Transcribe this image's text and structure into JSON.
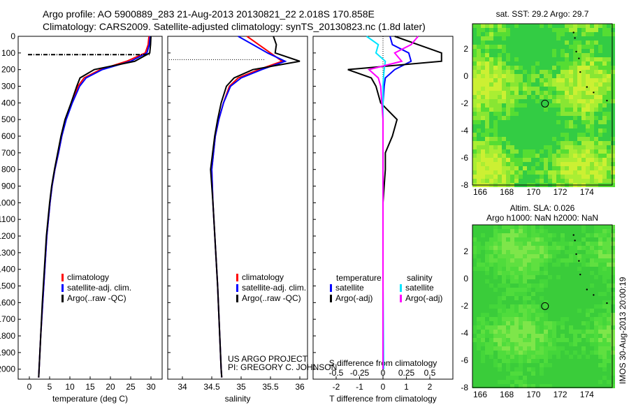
{
  "header": {
    "line1": "Argo profile: AO 5900889_283 21-Aug-2013 20130821_22 2.018S 170.858E",
    "line2": "Climatology: CARS2009. Satellite-adjusted climatology: synTS_20130823.nc (1.8d later)"
  },
  "colors": {
    "climatology": "#ff0000",
    "satellite": "#0000ff",
    "argo": "#000000",
    "s_satellite": "#00e5ff",
    "s_argo": "#ff00ff"
  },
  "chart_data": [
    {
      "type": "line",
      "name": "temperature",
      "xlabel": "temperature (deg C)",
      "xlim": [
        -2.5,
        32
      ],
      "ylim": [
        0,
        2060
      ],
      "xticks": [
        0,
        5,
        10,
        15,
        20,
        25,
        30
      ],
      "yticks": [
        0,
        100,
        200,
        300,
        400,
        500,
        600,
        700,
        800,
        900,
        1000,
        1100,
        1200,
        1300,
        1400,
        1500,
        1600,
        1700,
        1800,
        1900,
        2000
      ],
      "legend": [
        "climatology",
        "satellite-adj. clim.",
        "Argo(..raw -QC)"
      ],
      "depth": [
        0,
        50,
        100,
        150,
        200,
        250,
        300,
        400,
        500,
        600,
        700,
        800,
        900,
        1000,
        1200,
        1400,
        1600,
        1800,
        2000,
        2050
      ],
      "series": [
        {
          "name": "climatology",
          "values": [
            29.5,
            29.3,
            28.6,
            24,
            17.5,
            13.5,
            12,
            10.5,
            9,
            8,
            7.2,
            6.3,
            5.6,
            5.1,
            4.3,
            3.8,
            3.3,
            2.8,
            2.4,
            2.3
          ]
        },
        {
          "name": "satellite-adj. clim.",
          "values": [
            29.8,
            29.6,
            29,
            25,
            18,
            14,
            12.4,
            10.6,
            9.1,
            8,
            7.2,
            6.3,
            5.6,
            5.1,
            4.3,
            3.8,
            3.3,
            2.8,
            2.4,
            2.3
          ]
        },
        {
          "name": "Argo(..raw -QC)",
          "values": [
            30,
            29.9,
            29.7,
            26,
            16,
            12.5,
            11.7,
            10.3,
            8.8,
            7.8,
            7,
            6.2,
            5.5,
            5,
            4.2,
            3.7,
            3.2,
            2.8,
            2.4,
            2.3
          ]
        }
      ]
    },
    {
      "type": "line",
      "name": "salinity",
      "xlabel": "salinity",
      "xlim": [
        33.75,
        36.1
      ],
      "ylim": [
        0,
        2060
      ],
      "xticks": [
        34,
        34.5,
        35,
        35.5,
        36
      ],
      "legend": [
        "climatology",
        "satellite-adj. clim.",
        "Argo(..raw -QC)"
      ],
      "annotation": [
        "US ARGO PROJECT",
        "PI: GREGORY C. JOHNSON"
      ],
      "depth": [
        0,
        50,
        100,
        150,
        200,
        250,
        300,
        400,
        500,
        600,
        800,
        1000,
        1500,
        2000,
        2050
      ],
      "series": [
        {
          "name": "climatology",
          "values": [
            35.1,
            35.3,
            35.5,
            35.7,
            35.3,
            34.95,
            34.8,
            34.7,
            34.62,
            34.56,
            34.5,
            34.52,
            34.6,
            34.66,
            34.67
          ]
        },
        {
          "name": "satellite-adj. clim.",
          "values": [
            34.95,
            35.2,
            35.45,
            35.75,
            35.35,
            35,
            34.82,
            34.7,
            34.62,
            34.56,
            34.5,
            34.52,
            34.6,
            34.66,
            34.67
          ]
        },
        {
          "name": "Argo(..raw -QC)",
          "values": [
            35.55,
            35.6,
            35.58,
            36,
            35.2,
            34.88,
            34.75,
            34.66,
            34.6,
            34.55,
            34.48,
            34.52,
            34.6,
            34.66,
            34.67
          ]
        }
      ]
    },
    {
      "type": "line",
      "name": "difference",
      "xlabel": "T difference from climatology",
      "x2label": "S difference from climatology",
      "xlim": [
        -3,
        3
      ],
      "xticks": [
        -2,
        -1,
        0,
        1,
        2
      ],
      "x2ticks": [
        "-0.5",
        "-0.25",
        "0",
        "0.25",
        "0.5"
      ],
      "ylim": [
        0,
        2060
      ],
      "legend_t": {
        "title": "temperature",
        "items": [
          "satellite",
          "Argo(-adj)"
        ]
      },
      "legend_s": {
        "title": "salinity",
        "items": [
          "satellite",
          "Argo(-adj)"
        ]
      },
      "depth": [
        0,
        50,
        100,
        150,
        200,
        250,
        300,
        400,
        500,
        600,
        700,
        800,
        1000,
        1500,
        2000
      ],
      "series": [
        {
          "name": "T satellite",
          "values": [
            0.3,
            0.4,
            1.1,
            1.2,
            0.5,
            0.1,
            0.05,
            0,
            0,
            0,
            0,
            0,
            0,
            0,
            0
          ]
        },
        {
          "name": "T Argo(-adj)",
          "values": [
            0.5,
            1.5,
            2.5,
            2.5,
            -1.5,
            -0.5,
            -0.3,
            -0.1,
            0.6,
            0.4,
            0.1,
            0.1,
            0,
            0,
            0
          ]
        },
        {
          "name": "S satellite",
          "values": [
            -0.7,
            -0.2,
            -0.3,
            0.1,
            0.05,
            0.02,
            0,
            0,
            0,
            0,
            0,
            0,
            0,
            0,
            0.03
          ]
        },
        {
          "name": "S Argo(-adj)",
          "values": [
            1.5,
            1.2,
            0.5,
            0.8,
            -0.6,
            -0.2,
            -0.1,
            -0.05,
            0,
            0,
            0,
            0,
            0,
            0,
            0
          ]
        }
      ]
    },
    {
      "type": "heatmap",
      "name": "sst-map",
      "title": "sat. SST: 29.2 Argo: 29.7",
      "xticks": [
        166,
        168,
        170,
        172,
        174
      ],
      "yticks": [
        2,
        0,
        -2,
        -4,
        -6,
        -8
      ],
      "xlim": [
        165.4,
        176
      ],
      "ylim": [
        -8,
        3.9
      ],
      "argo_position": [
        170.858,
        -2.018
      ]
    },
    {
      "type": "heatmap",
      "name": "sla-map",
      "title": [
        "Altim. SLA: 0.026",
        "Argo h1000: NaN h2000: NaN"
      ],
      "xticks": [
        166,
        168,
        170,
        172,
        174
      ],
      "yticks": [
        2,
        0,
        -2,
        -4,
        -6,
        -8
      ],
      "xlim": [
        165.4,
        176
      ],
      "ylim": [
        -8,
        3.9
      ],
      "argo_position": [
        170.858,
        -2.018
      ]
    }
  ],
  "footer": {
    "stamp": "IMOS 30-Aug-2013 20:00:19"
  }
}
